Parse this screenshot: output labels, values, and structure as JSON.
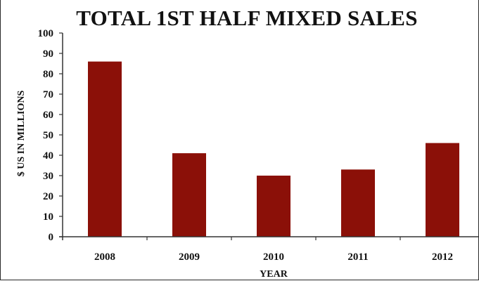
{
  "chart_data": {
    "type": "bar",
    "title": "TOTAL 1ST HALF MIXED SALES",
    "xlabel": "YEAR",
    "ylabel": "$ US IN MILLIONS",
    "categories": [
      "2008",
      "2009",
      "2010",
      "2011",
      "2012"
    ],
    "values": [
      86,
      41,
      30,
      33,
      46
    ],
    "ylim": [
      0,
      100
    ],
    "yticks": [
      0,
      10,
      20,
      30,
      40,
      50,
      60,
      70,
      80,
      90,
      100
    ],
    "grid": false,
    "legend": "none",
    "colors": {
      "bar": "#8b1008",
      "axis": "#333333",
      "text": "#111111"
    }
  }
}
